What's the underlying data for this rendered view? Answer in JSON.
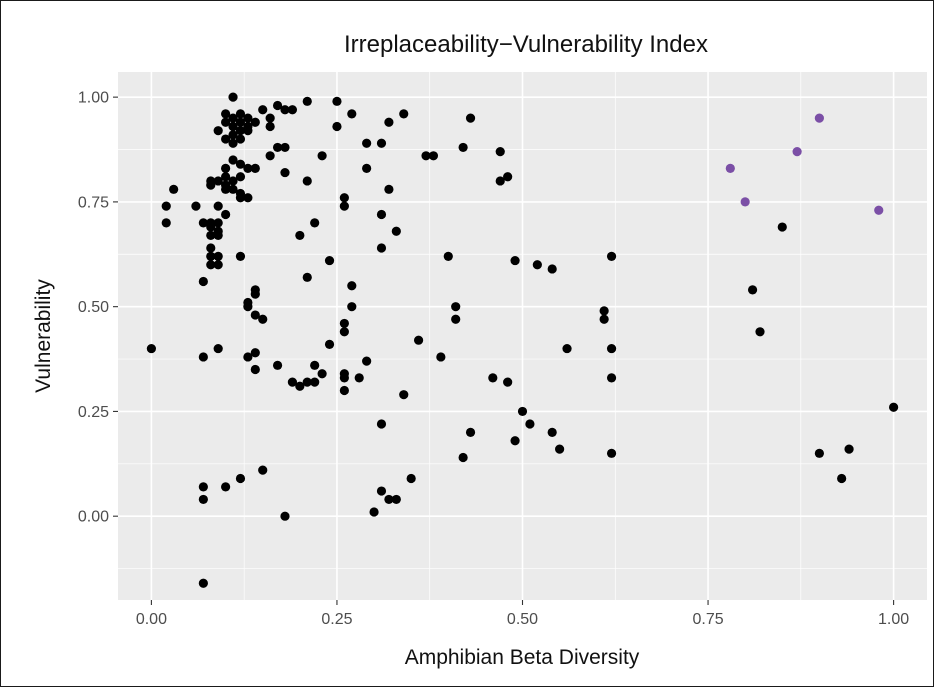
{
  "chart_data": {
    "type": "scatter",
    "title": "Irreplaceability−Vulnerability Index",
    "xlabel": "Amphibian Beta Diversity",
    "ylabel": "Vulnerability",
    "xlim": [
      -0.045,
      1.045
    ],
    "ylim": [
      -0.2,
      1.06
    ],
    "x_ticks": [
      "0.00",
      "0.25",
      "0.50",
      "0.75",
      "1.00"
    ],
    "y_ticks": [
      "1.00",
      "0.75",
      "0.50",
      "0.25",
      "0.00"
    ],
    "grid": true,
    "legend": "none",
    "colors": {
      "panel": "#ebebeb",
      "grid": "#ffffff",
      "default_point": "#000000",
      "highlight_point": "#7b4fa6"
    },
    "series": [
      {
        "color": "#000000",
        "points": [
          [
            0.11,
            1.0
          ],
          [
            0.25,
            0.99
          ],
          [
            0.21,
            0.99
          ],
          [
            0.17,
            0.98
          ],
          [
            0.18,
            0.97
          ],
          [
            0.15,
            0.97
          ],
          [
            0.19,
            0.97
          ],
          [
            0.1,
            0.96
          ],
          [
            0.12,
            0.96
          ],
          [
            0.27,
            0.96
          ],
          [
            0.34,
            0.96
          ],
          [
            0.13,
            0.95
          ],
          [
            0.16,
            0.95
          ],
          [
            0.11,
            0.95
          ],
          [
            0.43,
            0.95
          ],
          [
            0.14,
            0.94
          ],
          [
            0.12,
            0.94
          ],
          [
            0.1,
            0.94
          ],
          [
            0.32,
            0.94
          ],
          [
            0.13,
            0.93
          ],
          [
            0.11,
            0.93
          ],
          [
            0.16,
            0.93
          ],
          [
            0.25,
            0.93
          ],
          [
            0.09,
            0.92
          ],
          [
            0.12,
            0.92
          ],
          [
            0.11,
            0.91
          ],
          [
            0.13,
            0.92
          ],
          [
            0.12,
            0.9
          ],
          [
            0.1,
            0.9
          ],
          [
            0.11,
            0.89
          ],
          [
            0.29,
            0.89
          ],
          [
            0.31,
            0.89
          ],
          [
            0.17,
            0.88
          ],
          [
            0.18,
            0.88
          ],
          [
            0.42,
            0.88
          ],
          [
            0.47,
            0.87
          ],
          [
            0.16,
            0.86
          ],
          [
            0.23,
            0.86
          ],
          [
            0.37,
            0.86
          ],
          [
            0.38,
            0.86
          ],
          [
            0.11,
            0.85
          ],
          [
            0.12,
            0.84
          ],
          [
            0.13,
            0.83
          ],
          [
            0.14,
            0.83
          ],
          [
            0.1,
            0.83
          ],
          [
            0.29,
            0.83
          ],
          [
            0.18,
            0.82
          ],
          [
            0.1,
            0.81
          ],
          [
            0.12,
            0.81
          ],
          [
            0.48,
            0.81
          ],
          [
            0.08,
            0.8
          ],
          [
            0.09,
            0.8
          ],
          [
            0.11,
            0.8
          ],
          [
            0.21,
            0.8
          ],
          [
            0.47,
            0.8
          ],
          [
            0.08,
            0.79
          ],
          [
            0.1,
            0.79
          ],
          [
            0.11,
            0.78
          ],
          [
            0.03,
            0.78
          ],
          [
            0.32,
            0.78
          ],
          [
            0.1,
            0.78
          ],
          [
            0.12,
            0.77
          ],
          [
            0.12,
            0.76
          ],
          [
            0.13,
            0.76
          ],
          [
            0.26,
            0.76
          ],
          [
            0.02,
            0.74
          ],
          [
            0.06,
            0.74
          ],
          [
            0.09,
            0.74
          ],
          [
            0.26,
            0.74
          ],
          [
            0.1,
            0.72
          ],
          [
            0.31,
            0.72
          ],
          [
            0.02,
            0.7
          ],
          [
            0.07,
            0.7
          ],
          [
            0.08,
            0.7
          ],
          [
            0.09,
            0.7
          ],
          [
            0.22,
            0.7
          ],
          [
            0.08,
            0.69
          ],
          [
            0.09,
            0.68
          ],
          [
            0.33,
            0.68
          ],
          [
            0.08,
            0.67
          ],
          [
            0.09,
            0.67
          ],
          [
            0.2,
            0.67
          ],
          [
            0.08,
            0.64
          ],
          [
            0.31,
            0.64
          ],
          [
            0.08,
            0.62
          ],
          [
            0.09,
            0.62
          ],
          [
            0.12,
            0.62
          ],
          [
            0.4,
            0.62
          ],
          [
            0.08,
            0.6
          ],
          [
            0.09,
            0.6
          ],
          [
            0.24,
            0.61
          ],
          [
            0.49,
            0.61
          ],
          [
            0.52,
            0.6
          ],
          [
            0.54,
            0.59
          ],
          [
            0.62,
            0.62
          ],
          [
            0.21,
            0.57
          ],
          [
            0.07,
            0.56
          ],
          [
            0.27,
            0.55
          ],
          [
            0.14,
            0.54
          ],
          [
            0.14,
            0.53
          ],
          [
            0.13,
            0.51
          ],
          [
            0.13,
            0.5
          ],
          [
            0.27,
            0.5
          ],
          [
            0.41,
            0.5
          ],
          [
            0.61,
            0.49
          ],
          [
            0.14,
            0.48
          ],
          [
            0.15,
            0.47
          ],
          [
            0.41,
            0.47
          ],
          [
            0.61,
            0.47
          ],
          [
            0.26,
            0.46
          ],
          [
            0.26,
            0.44
          ],
          [
            0.36,
            0.42
          ],
          [
            0.24,
            0.41
          ],
          [
            0.0,
            0.4
          ],
          [
            0.09,
            0.4
          ],
          [
            0.56,
            0.4
          ],
          [
            0.62,
            0.4
          ],
          [
            0.14,
            0.39
          ],
          [
            0.07,
            0.38
          ],
          [
            0.13,
            0.38
          ],
          [
            0.39,
            0.38
          ],
          [
            0.29,
            0.37
          ],
          [
            0.17,
            0.36
          ],
          [
            0.22,
            0.36
          ],
          [
            0.14,
            0.35
          ],
          [
            0.23,
            0.34
          ],
          [
            0.26,
            0.34
          ],
          [
            0.26,
            0.33
          ],
          [
            0.28,
            0.33
          ],
          [
            0.46,
            0.33
          ],
          [
            0.62,
            0.33
          ],
          [
            0.19,
            0.32
          ],
          [
            0.21,
            0.32
          ],
          [
            0.22,
            0.32
          ],
          [
            0.48,
            0.32
          ],
          [
            0.2,
            0.31
          ],
          [
            0.26,
            0.3
          ],
          [
            0.34,
            0.29
          ],
          [
            0.5,
            0.25
          ],
          [
            0.31,
            0.22
          ],
          [
            0.51,
            0.22
          ],
          [
            0.43,
            0.2
          ],
          [
            0.54,
            0.2
          ],
          [
            0.49,
            0.18
          ],
          [
            0.55,
            0.16
          ],
          [
            0.42,
            0.14
          ],
          [
            0.62,
            0.15
          ],
          [
            0.15,
            0.11
          ],
          [
            0.12,
            0.09
          ],
          [
            0.35,
            0.09
          ],
          [
            0.1,
            0.07
          ],
          [
            0.07,
            0.07
          ],
          [
            0.31,
            0.06
          ],
          [
            0.07,
            0.04
          ],
          [
            0.32,
            0.04
          ],
          [
            0.33,
            0.04
          ],
          [
            0.3,
            0.01
          ],
          [
            0.18,
            0.0
          ],
          [
            0.07,
            -0.16
          ],
          [
            0.85,
            0.69
          ],
          [
            0.81,
            0.54
          ],
          [
            0.82,
            0.44
          ],
          [
            1.0,
            0.26
          ],
          [
            0.9,
            0.15
          ],
          [
            0.94,
            0.16
          ],
          [
            0.93,
            0.09
          ]
        ]
      },
      {
        "color": "#7b4fa6",
        "points": [
          [
            0.78,
            0.83
          ],
          [
            0.8,
            0.75
          ],
          [
            0.87,
            0.87
          ],
          [
            0.9,
            0.95
          ],
          [
            0.98,
            0.73
          ]
        ]
      }
    ]
  }
}
